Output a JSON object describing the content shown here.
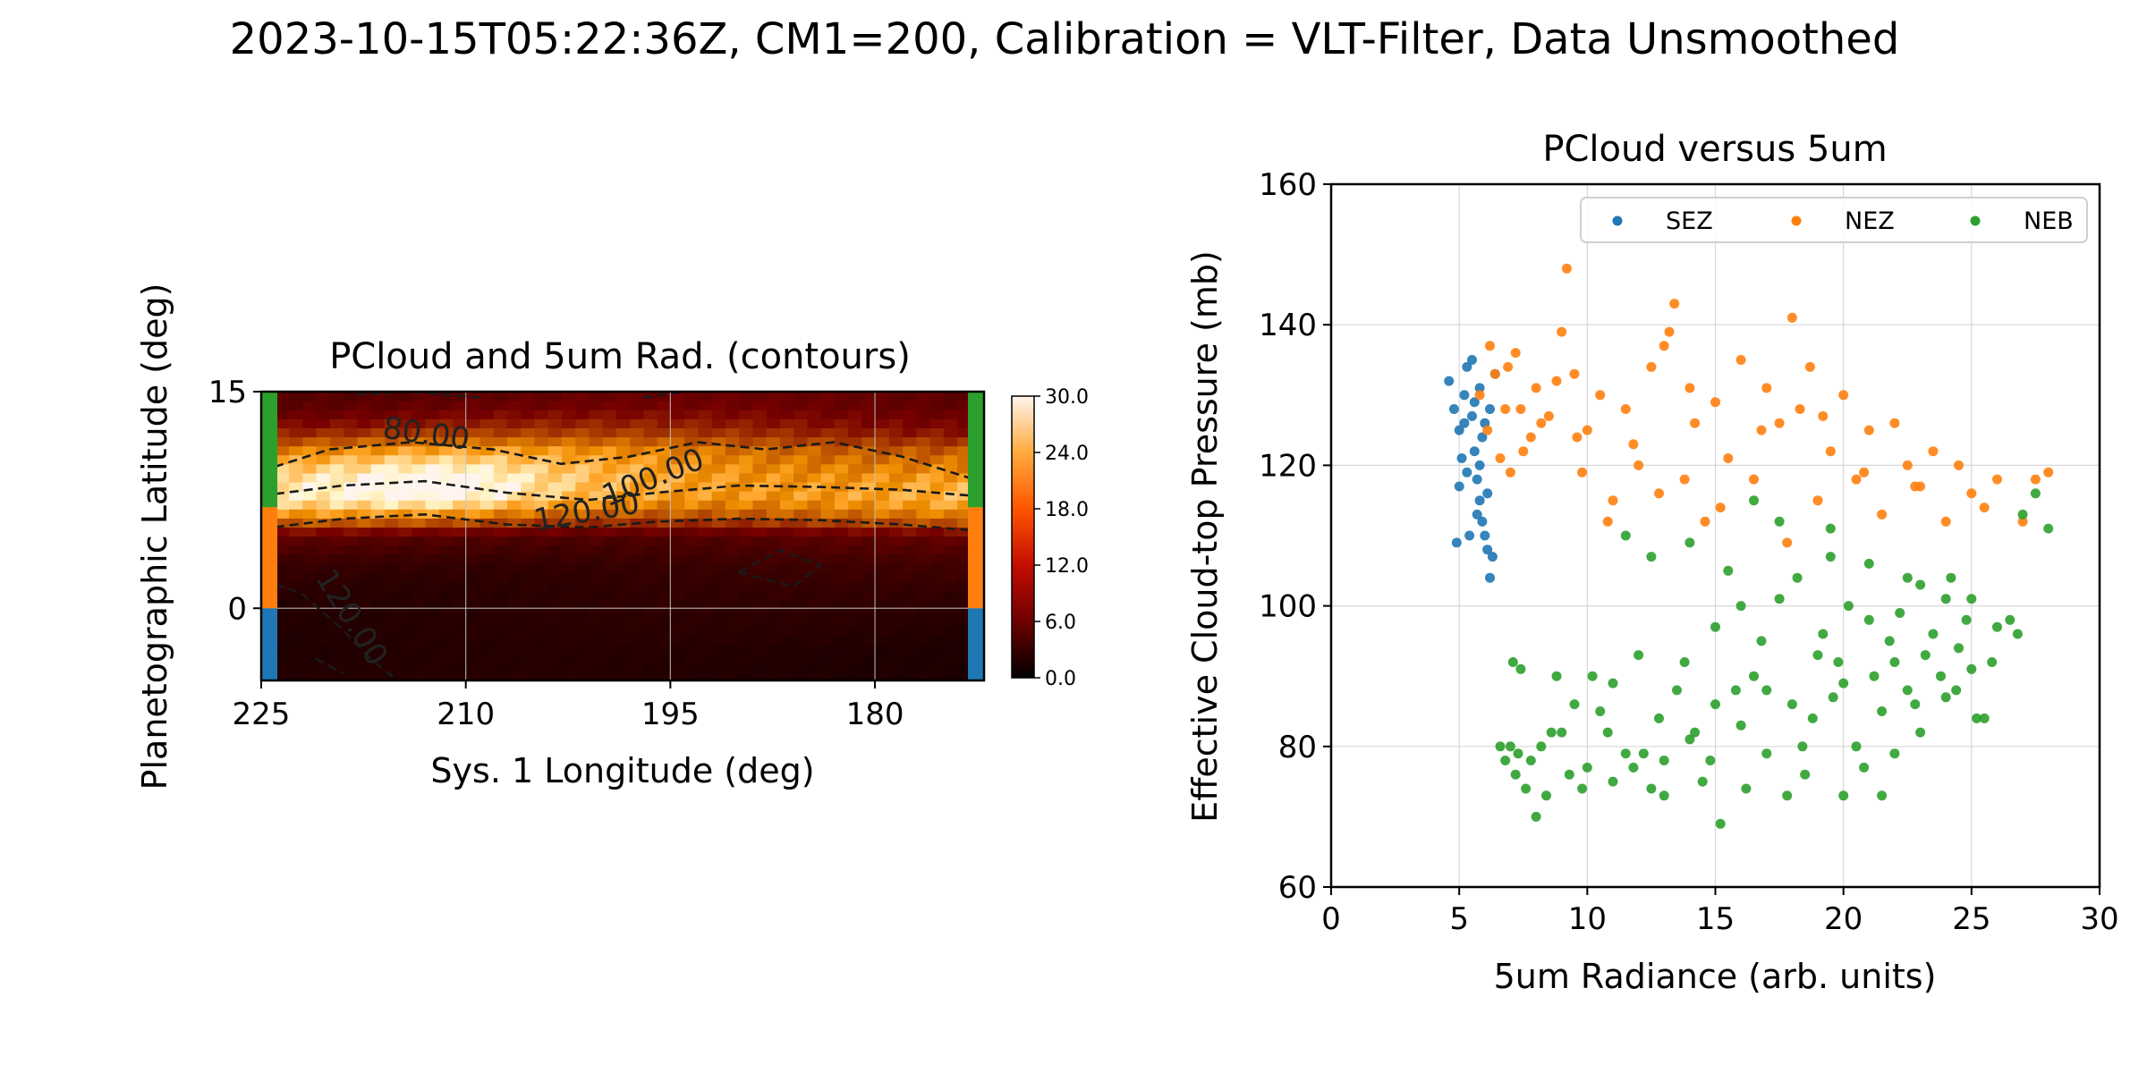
{
  "figure": {
    "suptitle": "2023-10-15T05:22:36Z, CM1=200, Calibration = VLT-Filter, Data Unsmoothed"
  },
  "colors": {
    "SEZ": "#1f77b4",
    "NEZ": "#ff7f0e",
    "NEB": "#2ca02c",
    "grid": "#c8c8c8",
    "contour": "#1a1a1a"
  },
  "chart_data": [
    {
      "type": "heatmap",
      "title": "PCloud and 5um Rad. (contours)",
      "xlabel": "Sys. 1 Longitude (deg)",
      "ylabel": "Planetographic Latitude (deg)",
      "xlim": [
        225,
        172
      ],
      "ylim": [
        -5,
        15
      ],
      "xticks": [
        225,
        210,
        195,
        180
      ],
      "yticks": [
        0,
        15
      ],
      "grid": true,
      "colormap": "gist_heat",
      "colorbar": {
        "ticks": [
          "0.0",
          "6.0",
          "12.0",
          "18.0",
          "24.0",
          "30.0"
        ],
        "range": [
          0,
          30
        ]
      },
      "latitude_bands": [
        {
          "name": "SEZ",
          "lat_range": [
            -5,
            0
          ]
        },
        {
          "name": "NEZ",
          "lat_range": [
            0,
            7
          ]
        },
        {
          "name": "NEB",
          "lat_range": [
            7,
            15
          ]
        }
      ],
      "intensity_profile": {
        "latitudes": [
          -5,
          -3,
          -1,
          1,
          3,
          5,
          6,
          7,
          8,
          9,
          10,
          11,
          12,
          13,
          14,
          15
        ],
        "values": [
          3,
          3,
          3.5,
          4,
          5,
          8,
          16,
          22,
          25,
          24,
          22,
          19,
          14,
          11,
          9,
          8
        ]
      },
      "contour_labels": [
        "80.00",
        "100.00",
        "120.00",
        "120.00"
      ]
    },
    {
      "type": "scatter",
      "title": "PCloud versus 5um",
      "xlabel": "5um Radiance (arb. units)",
      "ylabel": "Effective Cloud-top Pressure (mb)",
      "xlim": [
        0,
        30
      ],
      "ylim": [
        60,
        160
      ],
      "xticks": [
        0,
        5,
        10,
        15,
        20,
        25,
        30
      ],
      "yticks": [
        60,
        80,
        100,
        120,
        140,
        160
      ],
      "grid": true,
      "legend": {
        "placement": "top-right",
        "columns": 3
      },
      "series": [
        {
          "name": "SEZ",
          "points": [
            [
              4.6,
              132
            ],
            [
              4.8,
              128
            ],
            [
              5.0,
              125
            ],
            [
              5.2,
              130
            ],
            [
              5.3,
              134
            ],
            [
              5.5,
              127
            ],
            [
              5.6,
              122
            ],
            [
              5.7,
              118
            ],
            [
              5.8,
              115
            ],
            [
              5.9,
              112
            ],
            [
              6.0,
              110
            ],
            [
              6.1,
              108
            ],
            [
              5.4,
              110
            ],
            [
              4.9,
              109
            ],
            [
              6.2,
              104
            ],
            [
              6.3,
              107
            ],
            [
              6.0,
              126
            ],
            [
              5.8,
              131
            ],
            [
              5.1,
              121
            ],
            [
              5.5,
              135
            ],
            [
              6.2,
              128
            ],
            [
              5.9,
              124
            ],
            [
              5.3,
              119
            ],
            [
              5.7,
              113
            ],
            [
              6.1,
              116
            ],
            [
              5.6,
              129
            ],
            [
              5.2,
              126
            ],
            [
              6.4,
              133
            ],
            [
              5.0,
              117
            ],
            [
              5.8,
              120
            ]
          ]
        },
        {
          "name": "NEZ",
          "points": [
            [
              5.8,
              130
            ],
            [
              6.1,
              125
            ],
            [
              6.4,
              133
            ],
            [
              6.8,
              128
            ],
            [
              7.2,
              136
            ],
            [
              7.5,
              122
            ],
            [
              8.0,
              131
            ],
            [
              8.5,
              127
            ],
            [
              9.0,
              139
            ],
            [
              9.2,
              148
            ],
            [
              9.5,
              133
            ],
            [
              10.0,
              125
            ],
            [
              10.5,
              130
            ],
            [
              11.0,
              115
            ],
            [
              11.5,
              128
            ],
            [
              12.0,
              120
            ],
            [
              12.5,
              134
            ],
            [
              13.0,
              137
            ],
            [
              13.4,
              143
            ],
            [
              13.8,
              118
            ],
            [
              14.2,
              126
            ],
            [
              14.6,
              112
            ],
            [
              15.0,
              129
            ],
            [
              15.5,
              121
            ],
            [
              16.0,
              135
            ],
            [
              16.5,
              118
            ],
            [
              17.0,
              131
            ],
            [
              17.5,
              126
            ],
            [
              18.0,
              141
            ],
            [
              18.3,
              128
            ],
            [
              18.7,
              134
            ],
            [
              19.0,
              115
            ],
            [
              19.5,
              122
            ],
            [
              20.0,
              130
            ],
            [
              20.5,
              118
            ],
            [
              21.0,
              125
            ],
            [
              21.5,
              113
            ],
            [
              22.0,
              126
            ],
            [
              22.5,
              120
            ],
            [
              23.0,
              117
            ],
            [
              23.5,
              122
            ],
            [
              24.0,
              112
            ],
            [
              24.5,
              120
            ],
            [
              25.0,
              116
            ],
            [
              25.5,
              114
            ],
            [
              26.0,
              118
            ],
            [
              27.0,
              112
            ],
            [
              27.5,
              118
            ],
            [
              28.0,
              119
            ],
            [
              6.6,
              121
            ],
            [
              7.0,
              119
            ],
            [
              7.8,
              124
            ],
            [
              8.8,
              132
            ],
            [
              9.8,
              119
            ],
            [
              10.8,
              112
            ],
            [
              11.8,
              123
            ],
            [
              12.8,
              116
            ],
            [
              13.2,
              139
            ],
            [
              14.0,
              131
            ],
            [
              15.2,
              114
            ],
            [
              16.8,
              125
            ],
            [
              17.8,
              109
            ],
            [
              19.2,
              127
            ],
            [
              20.8,
              119
            ],
            [
              22.8,
              117
            ],
            [
              6.2,
              137
            ],
            [
              6.9,
              134
            ],
            [
              7.4,
              128
            ],
            [
              8.2,
              126
            ],
            [
              9.6,
              124
            ]
          ]
        },
        {
          "name": "NEB",
          "points": [
            [
              6.8,
              78
            ],
            [
              7.0,
              80
            ],
            [
              7.2,
              76
            ],
            [
              7.4,
              91
            ],
            [
              7.1,
              92
            ],
            [
              7.6,
              74
            ],
            [
              8.0,
              70
            ],
            [
              8.4,
              73
            ],
            [
              8.8,
              90
            ],
            [
              9.0,
              82
            ],
            [
              9.5,
              86
            ],
            [
              10.0,
              77
            ],
            [
              10.5,
              85
            ],
            [
              11.0,
              89
            ],
            [
              11.5,
              79
            ],
            [
              12.0,
              93
            ],
            [
              12.5,
              74
            ],
            [
              13.0,
              78
            ],
            [
              13.5,
              88
            ],
            [
              14.0,
              81
            ],
            [
              14.5,
              75
            ],
            [
              15.0,
              97
            ],
            [
              15.2,
              69
            ],
            [
              15.5,
              105
            ],
            [
              16.0,
              83
            ],
            [
              16.5,
              90
            ],
            [
              17.0,
              79
            ],
            [
              17.5,
              101
            ],
            [
              18.0,
              86
            ],
            [
              18.5,
              76
            ],
            [
              19.0,
              93
            ],
            [
              19.5,
              107
            ],
            [
              20.0,
              89
            ],
            [
              20.5,
              80
            ],
            [
              21.0,
              98
            ],
            [
              21.5,
              85
            ],
            [
              22.0,
              92
            ],
            [
              22.5,
              88
            ],
            [
              23.0,
              103
            ],
            [
              23.5,
              96
            ],
            [
              24.0,
              87
            ],
            [
              24.5,
              94
            ],
            [
              25.0,
              91
            ],
            [
              25.5,
              84
            ],
            [
              26.0,
              97
            ],
            [
              27.0,
              113
            ],
            [
              27.5,
              116
            ],
            [
              28.0,
              111
            ],
            [
              11.5,
              110
            ],
            [
              12.5,
              107
            ],
            [
              14.0,
              109
            ],
            [
              16.5,
              115
            ],
            [
              17.5,
              112
            ],
            [
              19.5,
              111
            ],
            [
              21.0,
              106
            ],
            [
              22.5,
              104
            ],
            [
              24.0,
              101
            ],
            [
              7.3,
              79
            ],
            [
              8.6,
              82
            ],
            [
              9.3,
              76
            ],
            [
              10.2,
              90
            ],
            [
              10.8,
              82
            ],
            [
              11.8,
              77
            ],
            [
              12.8,
              84
            ],
            [
              13.8,
              92
            ],
            [
              14.8,
              78
            ],
            [
              15.8,
              88
            ],
            [
              16.8,
              95
            ],
            [
              17.8,
              73
            ],
            [
              18.8,
              84
            ],
            [
              19.8,
              92
            ],
            [
              20.8,
              77
            ],
            [
              21.8,
              95
            ],
            [
              22.8,
              86
            ],
            [
              23.8,
              90
            ],
            [
              24.8,
              98
            ],
            [
              25.2,
              84
            ],
            [
              26.5,
              98
            ],
            [
              18.2,
              104
            ],
            [
              19.2,
              96
            ],
            [
              20.2,
              100
            ],
            [
              21.2,
              90
            ],
            [
              22.2,
              99
            ],
            [
              23.2,
              93
            ],
            [
              24.2,
              104
            ],
            [
              25.0,
              101
            ],
            [
              16.0,
              100
            ],
            [
              15.0,
              86
            ],
            [
              13.0,
              73
            ],
            [
              11.0,
              75
            ],
            [
              17.0,
              88
            ],
            [
              20.0,
              73
            ],
            [
              21.5,
              73
            ],
            [
              8.2,
              80
            ],
            [
              9.8,
              74
            ],
            [
              12.2,
              79
            ],
            [
              14.2,
              82
            ],
            [
              16.2,
              74
            ],
            [
              18.4,
              80
            ],
            [
              19.6,
              87
            ],
            [
              22.0,
              79
            ],
            [
              23.0,
              82
            ],
            [
              24.4,
              88
            ],
            [
              25.8,
              92
            ],
            [
              26.8,
              96
            ],
            [
              6.6,
              80
            ],
            [
              7.8,
              78
            ]
          ]
        }
      ]
    }
  ]
}
